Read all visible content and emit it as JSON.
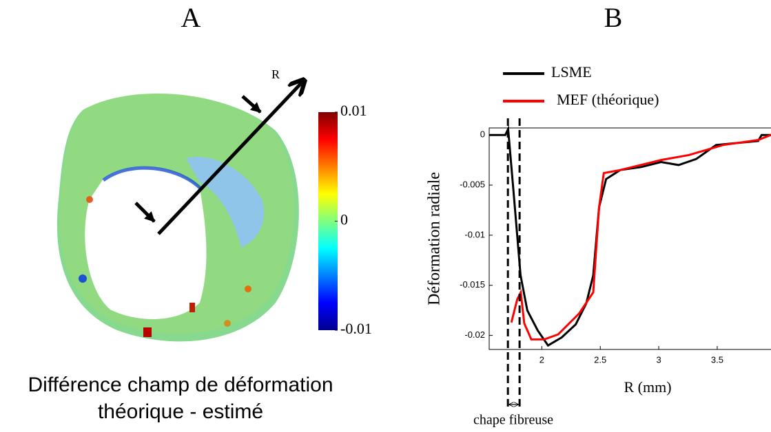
{
  "chart_data": [
    {
      "type": "image",
      "title": "A",
      "annotation": "R",
      "caption": [
        "Différence champ de déformation",
        "théorique - estimé"
      ],
      "clim": [
        -0.01,
        0.01
      ],
      "cticks": [
        0.01,
        0,
        -0.01
      ]
    },
    {
      "type": "line",
      "title": "B",
      "xlabel": "R (mm)",
      "ylabel": "Déformation radiale",
      "xlim": [
        1.55,
        3.96
      ],
      "ylim": [
        -0.0214,
        0.0007
      ],
      "xticks": [
        2,
        2.5,
        3,
        3.5
      ],
      "yticks": [
        0,
        -0.005,
        -0.01,
        -0.015,
        -0.02
      ],
      "legend": "upper-left",
      "series": [
        {
          "name": "LSME",
          "color": "#000000",
          "x": [
            1.553,
            1.688,
            1.712,
            1.759,
            1.818,
            1.876,
            1.965,
            2.053,
            2.17,
            2.29,
            2.38,
            2.44,
            2.49,
            2.55,
            2.67,
            2.85,
            3.02,
            3.17,
            3.32,
            3.49,
            3.67,
            3.85,
            3.88,
            3.96
          ],
          "values": [
            0,
            0,
            0.0006,
            -0.0058,
            -0.014,
            -0.0175,
            -0.0195,
            -0.021,
            -0.0202,
            -0.0189,
            -0.0168,
            -0.014,
            -0.0072,
            -0.0044,
            -0.0035,
            -0.0032,
            -0.0027,
            -0.003,
            -0.0024,
            -0.001,
            -0.0008,
            -0.0006,
            0,
            0
          ]
        },
        {
          "name": "MEF (théorique)",
          "color": "#ff0000",
          "x": [
            1.74,
            1.79,
            1.82,
            1.85,
            1.91,
            2.02,
            2.14,
            2.32,
            2.44,
            2.49,
            2.53,
            2.67,
            3.02,
            3.26,
            3.55,
            3.85,
            3.96
          ],
          "values": [
            -0.0187,
            -0.0164,
            -0.0157,
            -0.0188,
            -0.0204,
            -0.0204,
            -0.0199,
            -0.0178,
            -0.0157,
            -0.0072,
            -0.0038,
            -0.0035,
            -0.0025,
            -0.002,
            -0.001,
            -0.0005,
            0
          ]
        }
      ],
      "vlines": [
        1.71,
        1.81
      ],
      "annotation": "chape fibreuse"
    }
  ]
}
